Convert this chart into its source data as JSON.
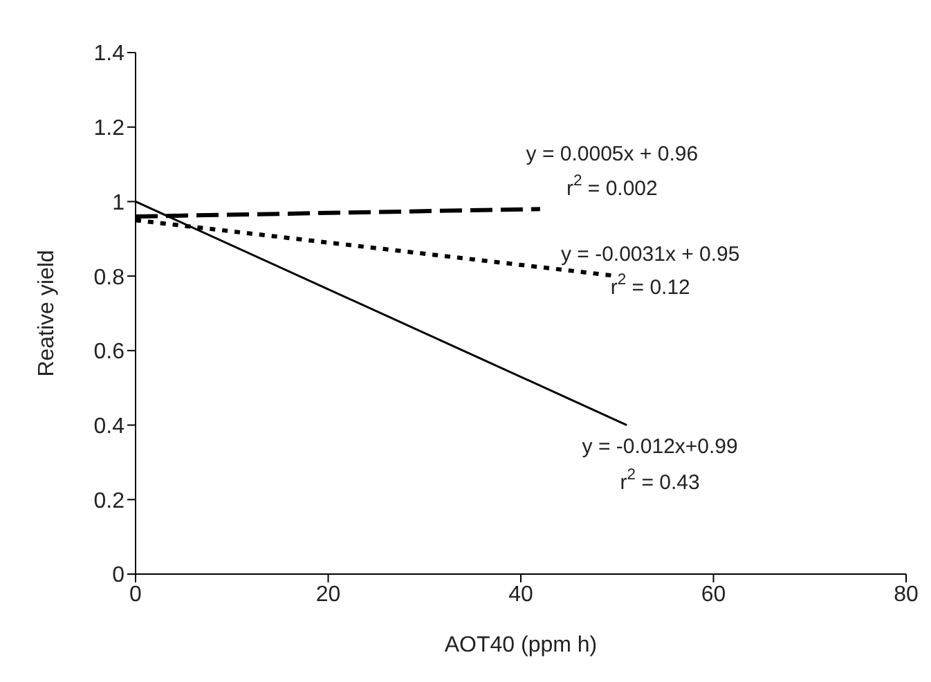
{
  "chart_data": {
    "type": "line",
    "xlabel": "AOT40 (ppm h)",
    "ylabel": "Reative yield",
    "xlim": [
      0,
      80
    ],
    "xticks": [
      0,
      20,
      40,
      60,
      80
    ],
    "ylim": [
      0,
      1.4
    ],
    "yticks": [
      0,
      0.2,
      0.4,
      0.6,
      0.8,
      1,
      1.2,
      1.4
    ],
    "grid": false,
    "legend": false,
    "marker": "none",
    "series": [
      {
        "color": "#000000",
        "line_style": "dashed",
        "x": [
          0,
          42
        ],
        "values": [
          0.96,
          0.98
        ]
      },
      {
        "color": "#000000",
        "line_style": "dotted",
        "x": [
          0,
          50
        ],
        "values": [
          0.95,
          0.8
        ]
      },
      {
        "color": "#000000",
        "line_style": "solid",
        "x": [
          0,
          51
        ],
        "values": [
          1.0,
          0.4
        ]
      }
    ],
    "annotations": [
      "y = 0.0005x + 0.96",
      "r$^{2}$ = 0.002",
      "y = -0.0031x + 0.95",
      "r$^{2}$ = 0.12",
      "y = -0.012x+0.99",
      "r$^{2}$ = 0.43"
    ]
  }
}
